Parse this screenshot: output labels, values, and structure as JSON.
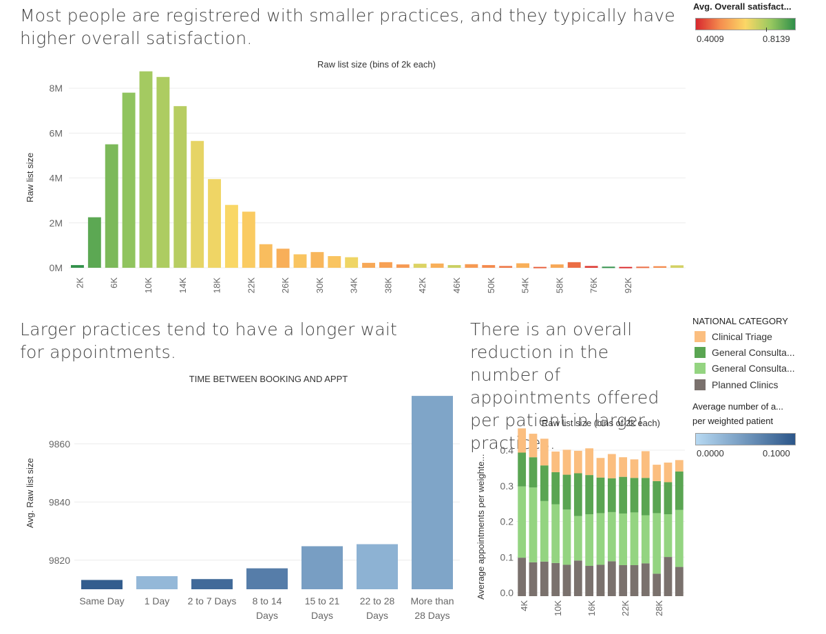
{
  "headline1": "Most people are registrered with smaller practices, and they typically have higher overall satisfaction.",
  "headline2": "Larger practices tend to have a longer wait for appointments.",
  "headline3": "There is an overall reduction in the number of appointments offered per patient in larger practices.",
  "legend_satisfaction": {
    "title": "Avg. Overall satisfact...",
    "min": "0.4009",
    "max": "0.8139",
    "colors": [
      "#d7272e",
      "#f58f4f",
      "#fbd766",
      "#9ac960",
      "#2f8f4a"
    ]
  },
  "legend_category": {
    "title": "NATIONAL CATEGORY",
    "items": [
      {
        "label": "Clinical Triage",
        "color": "#fbbe7f"
      },
      {
        "label": "General Consulta...",
        "color": "#5aa552"
      },
      {
        "label": "General Consulta...",
        "color": "#94d481"
      },
      {
        "label": "Planned Clinics",
        "color": "#7a716d"
      }
    ]
  },
  "legend_appts": {
    "title_line1": "Average number of a...",
    "title_line2": "per weighted patient",
    "min": "0.0000",
    "max": "0.1000",
    "colors": [
      "#b7d9f2",
      "#2c5689"
    ]
  },
  "chart_data": [
    {
      "type": "bar",
      "title": "Raw list size (bins of 2k each)",
      "ylabel": "Raw list size",
      "xlabel": "",
      "ylim": [
        0,
        8800000
      ],
      "yticks": [
        0,
        2000000,
        4000000,
        6000000,
        8000000
      ],
      "ytick_labels": [
        "0M",
        "2M",
        "4M",
        "6M",
        "8M"
      ],
      "xtick_labels": [
        "2K",
        "6K",
        "10K",
        "14K",
        "18K",
        "22K",
        "26K",
        "30K",
        "34K",
        "38K",
        "42K",
        "46K",
        "50K",
        "54K",
        "58K",
        "76K",
        "92K"
      ],
      "values": [
        120000,
        2250000,
        5500000,
        7800000,
        8750000,
        8500000,
        7200000,
        5650000,
        3950000,
        2800000,
        2500000,
        1050000,
        850000,
        600000,
        700000,
        520000,
        470000,
        220000,
        250000,
        150000,
        180000,
        190000,
        120000,
        160000,
        120000,
        80000,
        200000,
        40000,
        150000,
        250000,
        80000,
        50000,
        40000,
        50000,
        70000,
        110000
      ],
      "satisfaction": [
        0.81,
        0.77,
        0.74,
        0.72,
        0.7,
        0.69,
        0.68,
        0.63,
        0.62,
        0.61,
        0.59,
        0.57,
        0.55,
        0.58,
        0.56,
        0.58,
        0.62,
        0.54,
        0.53,
        0.52,
        0.64,
        0.55,
        0.66,
        0.52,
        0.5,
        0.48,
        0.55,
        0.46,
        0.54,
        0.47,
        0.42,
        0.81,
        0.41,
        0.47,
        0.5,
        0.65
      ]
    },
    {
      "type": "bar",
      "title": "TIME BETWEEN BOOKING AND APPT",
      "ylabel": "Avg. Raw list size",
      "ylim": [
        9810,
        9880
      ],
      "yticks": [
        9820,
        9840,
        9860
      ],
      "categories": [
        "Same Day",
        "1 Day",
        "2 to 7 Days",
        "8  to 14 Days",
        "15  to 21 Days",
        "22  to 28 Days",
        "More than 28 Days"
      ],
      "category_lines": [
        [
          "Same Day"
        ],
        [
          "1 Day"
        ],
        [
          "2 to 7 Days"
        ],
        [
          "8  to 14",
          "Days"
        ],
        [
          "15  to 21",
          "Days"
        ],
        [
          "22  to 28",
          "Days"
        ],
        [
          "More than",
          "28 Days"
        ]
      ],
      "values": [
        9813.2,
        9814.5,
        9813.5,
        9817.2,
        9824.8,
        9825.5,
        9876.5
      ],
      "appts_per_patient": [
        0.095,
        0.025,
        0.085,
        0.07,
        0.045,
        0.03,
        0.04
      ]
    },
    {
      "type": "bar",
      "stacked": true,
      "title": "Raw list size (bins of 2k each)",
      "ylabel": "Average appointments per weighte...",
      "ylim": [
        0,
        0.46
      ],
      "yticks": [
        0.0,
        0.1,
        0.2,
        0.3,
        0.4
      ],
      "ytick_labels": [
        "0.0",
        "0.1",
        "0.2",
        "0.3",
        "0.4"
      ],
      "xtick_labels": [
        "4K",
        "10K",
        "16K",
        "22K",
        "28K"
      ],
      "series": [
        {
          "name": "Planned Clinics",
          "values": [
            0.108,
            0.095,
            0.097,
            0.093,
            0.088,
            0.1,
            0.085,
            0.088,
            0.098,
            0.087,
            0.087,
            0.092,
            0.063,
            0.11,
            0.082
          ]
        },
        {
          "name": "General Consultation (Routine)",
          "values": [
            0.2,
            0.21,
            0.17,
            0.165,
            0.155,
            0.125,
            0.145,
            0.145,
            0.138,
            0.145,
            0.148,
            0.135,
            0.17,
            0.12,
            0.16
          ]
        },
        {
          "name": "General Consultation (Acute)",
          "values": [
            0.095,
            0.085,
            0.1,
            0.09,
            0.098,
            0.12,
            0.11,
            0.1,
            0.095,
            0.103,
            0.097,
            0.105,
            0.09,
            0.09,
            0.108
          ]
        },
        {
          "name": "Clinical Triage",
          "values": [
            0.068,
            0.066,
            0.075,
            0.058,
            0.07,
            0.063,
            0.075,
            0.055,
            0.068,
            0.055,
            0.052,
            0.075,
            0.046,
            0.055,
            0.032
          ]
        }
      ]
    }
  ]
}
